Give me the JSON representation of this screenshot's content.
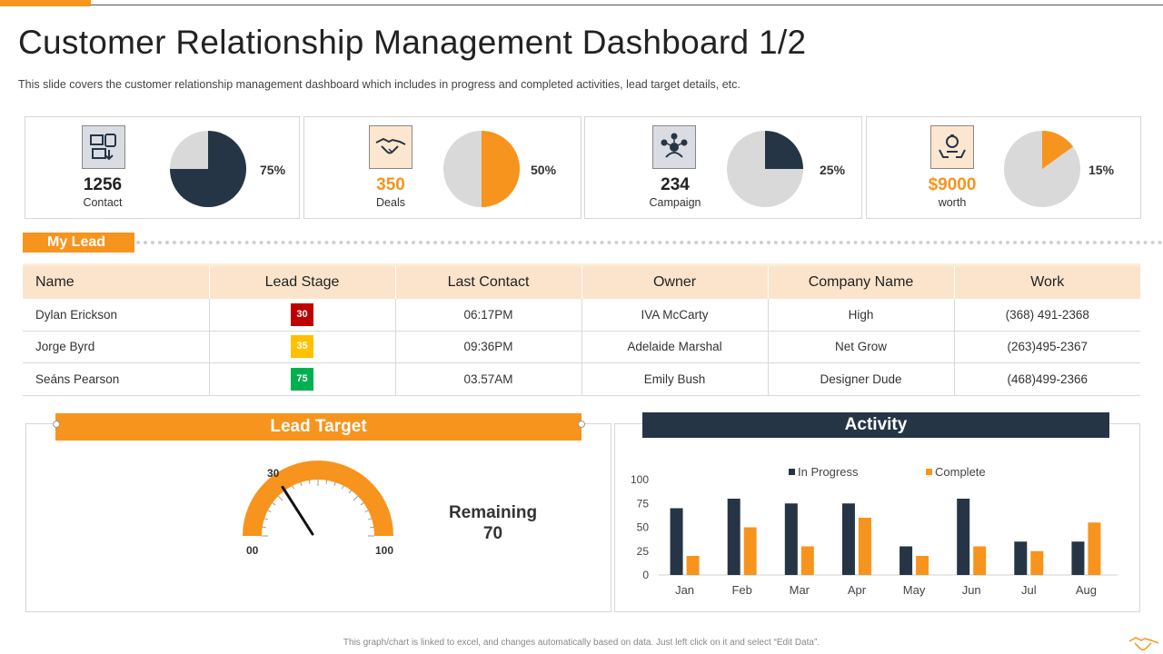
{
  "header": {
    "title": "Customer Relationship Management Dashboard 1/2",
    "subtitle": "This slide covers the customer relationship management dashboard  which includes in progress and completed activities, lead target details, etc."
  },
  "kpis": [
    {
      "value": "1256",
      "label": "Contact",
      "percent": 75,
      "percent_label": "75%",
      "value_color": "#222222",
      "slice_color": "#263545",
      "icon": "contact-devices-icon"
    },
    {
      "value": "350",
      "label": "Deals",
      "percent": 50,
      "percent_label": "50%",
      "value_color": "#f7941d",
      "slice_color": "#f7941d",
      "icon": "handshake-icon"
    },
    {
      "value": "234",
      "label": "Campaign",
      "percent": 25,
      "percent_label": "25%",
      "value_color": "#222222",
      "slice_color": "#263545",
      "icon": "campaign-network-icon"
    },
    {
      "value": "$9000",
      "label": "worth",
      "percent": 15,
      "percent_label": "15%",
      "value_color": "#f7941d",
      "slice_color": "#f7941d",
      "icon": "money-hands-icon"
    }
  ],
  "my_lead": {
    "tag": "My Lead",
    "columns": [
      "Name",
      "Lead Stage",
      "Last Contact",
      "Owner",
      "Company Name",
      "Work"
    ],
    "rows": [
      {
        "name": "Dylan Erickson",
        "stage": "30",
        "stage_color": "#c00000",
        "last_contact": "06:17PM",
        "owner": "IVA McCarty",
        "company": "High",
        "work": "(368) 491-2368"
      },
      {
        "name": "Jorge Byrd",
        "stage": "35",
        "stage_color": "#ffc000",
        "last_contact": "09:36PM",
        "owner": "Adelaide Marshal",
        "company": "Net Grow",
        "work": "(263)495-2367"
      },
      {
        "name": "Seáns Pearson",
        "stage": "75",
        "stage_color": "#00b050",
        "last_contact": "03.57AM",
        "owner": "Emily Bush",
        "company": "Designer Dude",
        "work": "(468)499-2366"
      }
    ]
  },
  "lead_target": {
    "title": "Lead Target",
    "gauge_value": 30,
    "gauge_value_label": "30",
    "gauge_min": "00",
    "gauge_max": "100",
    "remaining_label": "Remaining",
    "remaining_value": "70"
  },
  "activity": {
    "title": "Activity"
  },
  "chart_data": {
    "type": "bar",
    "categories": [
      "Jan",
      "Feb",
      "Mar",
      "Apr",
      "May",
      "Jun",
      "Jul",
      "Aug"
    ],
    "series": [
      {
        "name": "In Progress",
        "values": [
          70,
          80,
          75,
          75,
          30,
          80,
          35,
          35
        ],
        "color": "#263545"
      },
      {
        "name": "Complete",
        "values": [
          20,
          50,
          30,
          60,
          20,
          30,
          25,
          55
        ],
        "color": "#f7941d"
      }
    ],
    "yticks": [
      "100",
      "75",
      "50",
      "25",
      "0"
    ],
    "ylim": [
      0,
      100
    ],
    "legend_position": "top",
    "grid": false
  },
  "footer": {
    "note": "This graph/chart is linked to excel, and changes automatically based on data. Just left click on it and select “Edit Data”."
  },
  "colors": {
    "accent": "#f7941d",
    "navy": "#263545",
    "pie_rest": "#d9d9d9"
  }
}
